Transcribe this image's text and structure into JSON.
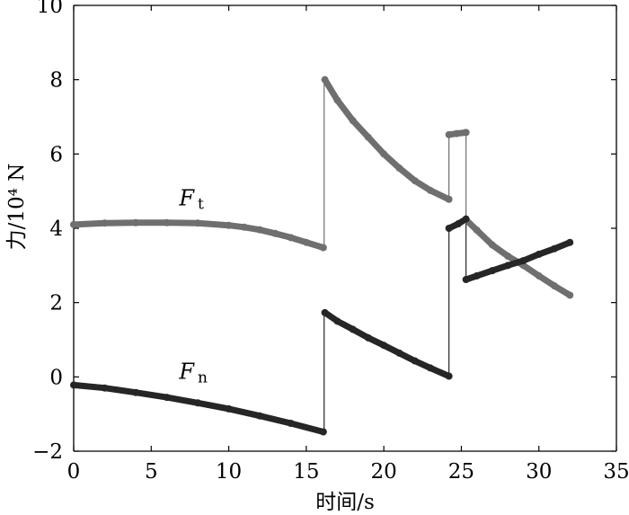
{
  "chart_data": {
    "type": "line",
    "title": "",
    "xlabel": "时间/s",
    "ylabel": "力/10⁴ N",
    "xlim": [
      0,
      35
    ],
    "ylim": [
      -2,
      10
    ],
    "x_ticks": [
      "0",
      "5",
      "10",
      "15",
      "20",
      "25",
      "30",
      "35"
    ],
    "y_ticks": [
      "−2",
      "0",
      "2",
      "4",
      "6",
      "8",
      "10"
    ],
    "grid": false,
    "box": true,
    "series": [
      {
        "name": "Ft",
        "label_main": "F",
        "label_sub": "t",
        "color": "#6f6f6f",
        "segments": [
          {
            "x": [
              0,
              2,
              4,
              6,
              8,
              10,
              11,
              12,
              13,
              14,
              15,
              16.1
            ],
            "y": [
              4.1,
              4.14,
              4.15,
              4.15,
              4.14,
              4.08,
              4.03,
              3.96,
              3.86,
              3.75,
              3.62,
              3.48
            ]
          },
          {
            "x": [
              16.2,
              17,
              18,
              19,
              20,
              21,
              22,
              23,
              24.2
            ],
            "y": [
              8.0,
              7.45,
              6.9,
              6.45,
              6.0,
              5.62,
              5.28,
              5.02,
              4.78
            ]
          },
          {
            "x": [
              24.2,
              24.7,
              25.3
            ],
            "y": [
              6.52,
              6.55,
              6.58
            ]
          },
          {
            "x": [
              25.3,
              26,
              27,
              28,
              29,
              30,
              31,
              32
            ],
            "y": [
              4.23,
              3.95,
              3.55,
              3.25,
              3.0,
              2.72,
              2.45,
              2.2
            ]
          }
        ]
      },
      {
        "name": "Fn",
        "label_main": "F",
        "label_sub": "n",
        "color": "#262626",
        "segments": [
          {
            "x": [
              0,
              2,
              4,
              6,
              8,
              10,
              12,
              14,
              16.1
            ],
            "y": [
              -0.22,
              -0.3,
              -0.42,
              -0.55,
              -0.7,
              -0.86,
              -1.05,
              -1.25,
              -1.48
            ]
          },
          {
            "x": [
              16.2,
              17,
              18,
              19,
              20,
              21,
              22,
              23,
              24.2
            ],
            "y": [
              1.73,
              1.5,
              1.28,
              1.05,
              0.85,
              0.64,
              0.43,
              0.24,
              0.02
            ]
          },
          {
            "x": [
              24.2,
              24.8,
              25.3
            ],
            "y": [
              4.0,
              4.12,
              4.25
            ]
          },
          {
            "x": [
              25.3,
              26,
              27,
              28,
              29,
              30,
              31,
              32
            ],
            "y": [
              2.62,
              2.72,
              2.86,
              3.0,
              3.13,
              3.3,
              3.45,
              3.62
            ]
          }
        ]
      }
    ],
    "jumps": [
      {
        "series": "Ft",
        "x": 16.15,
        "from": 3.48,
        "to": 8.0
      },
      {
        "series": "Ft",
        "x": 24.2,
        "from": 4.78,
        "to": 6.52
      },
      {
        "series": "Ft",
        "x": 25.3,
        "from": 6.58,
        "to": 4.23
      },
      {
        "series": "Fn",
        "x": 16.15,
        "from": -1.48,
        "to": 1.73
      },
      {
        "series": "Fn",
        "x": 24.2,
        "from": 0.02,
        "to": 4.0
      },
      {
        "series": "Fn",
        "x": 25.3,
        "from": 4.25,
        "to": 2.62
      }
    ],
    "annotations": [
      {
        "series": "Ft",
        "x": 6.8,
        "y": 4.62
      },
      {
        "series": "Fn",
        "x": 6.8,
        "y": -0.05
      }
    ]
  }
}
